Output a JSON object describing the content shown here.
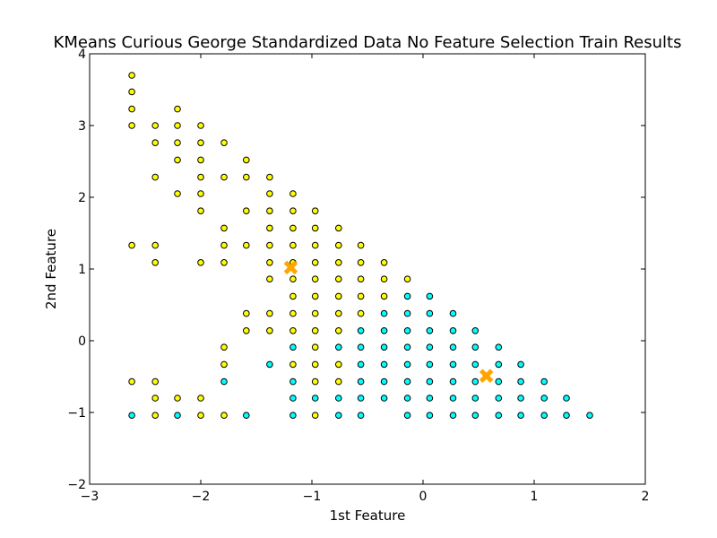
{
  "chart_data": {
    "type": "scatter",
    "title": "KMeans Curious George Standardized Data No Feature Selection Train Results",
    "xlabel": "1st Feature",
    "ylabel": "2nd Feature",
    "xlim": [
      -3,
      2
    ],
    "ylim": [
      -2,
      4
    ],
    "xticks": [
      -3,
      -2,
      -1,
      0,
      1,
      2
    ],
    "yticks": [
      -2,
      -1,
      0,
      1,
      2,
      3,
      4
    ],
    "xtick_labels": [
      "−3",
      "−2",
      "−1",
      "0",
      "1",
      "2"
    ],
    "ytick_labels": [
      "−2",
      "−1",
      "0",
      "1",
      "2",
      "3",
      "4"
    ],
    "grid": false,
    "legend": "none",
    "colors": {
      "cluster_0": "#ffff00",
      "cluster_1": "#00ffff",
      "centroid": "#ffa500",
      "edge": "#000000"
    },
    "series": [
      {
        "cluster": 0,
        "color": "#ffff00",
        "points": [
          [
            -2.62,
            3.7
          ],
          [
            -2.62,
            3.47
          ],
          [
            -2.62,
            3.23
          ],
          [
            -2.62,
            3.0
          ],
          [
            -2.62,
            1.33
          ],
          [
            -2.62,
            -0.57
          ],
          [
            -2.41,
            3.0
          ],
          [
            -2.41,
            2.76
          ],
          [
            -2.41,
            2.28
          ],
          [
            -2.41,
            1.33
          ],
          [
            -2.41,
            1.09
          ],
          [
            -2.41,
            -0.57
          ],
          [
            -2.41,
            -0.8
          ],
          [
            -2.41,
            -1.04
          ],
          [
            -2.21,
            3.23
          ],
          [
            -2.21,
            3.0
          ],
          [
            -2.21,
            2.76
          ],
          [
            -2.21,
            2.52
          ],
          [
            -2.21,
            2.05
          ],
          [
            -2.21,
            -0.8
          ],
          [
            -2.0,
            3.0
          ],
          [
            -2.0,
            2.76
          ],
          [
            -2.0,
            2.52
          ],
          [
            -2.0,
            2.28
          ],
          [
            -2.0,
            2.05
          ],
          [
            -2.0,
            1.81
          ],
          [
            -2.0,
            1.09
          ],
          [
            -2.0,
            -0.8
          ],
          [
            -2.0,
            -1.04
          ],
          [
            -1.79,
            2.76
          ],
          [
            -1.79,
            2.28
          ],
          [
            -1.79,
            1.57
          ],
          [
            -1.79,
            1.33
          ],
          [
            -1.79,
            1.09
          ],
          [
            -1.79,
            -0.09
          ],
          [
            -1.79,
            -0.33
          ],
          [
            -1.79,
            -1.04
          ],
          [
            -1.59,
            2.52
          ],
          [
            -1.59,
            2.28
          ],
          [
            -1.59,
            1.81
          ],
          [
            -1.59,
            1.33
          ],
          [
            -1.59,
            0.38
          ],
          [
            -1.59,
            0.14
          ],
          [
            -1.38,
            2.28
          ],
          [
            -1.38,
            2.05
          ],
          [
            -1.38,
            1.81
          ],
          [
            -1.38,
            1.57
          ],
          [
            -1.38,
            1.33
          ],
          [
            -1.38,
            1.09
          ],
          [
            -1.38,
            0.86
          ],
          [
            -1.38,
            0.38
          ],
          [
            -1.38,
            0.14
          ],
          [
            -1.17,
            2.05
          ],
          [
            -1.17,
            1.81
          ],
          [
            -1.17,
            1.57
          ],
          [
            -1.17,
            1.33
          ],
          [
            -1.17,
            1.09
          ],
          [
            -1.17,
            0.86
          ],
          [
            -1.17,
            0.62
          ],
          [
            -1.17,
            0.38
          ],
          [
            -1.17,
            0.14
          ],
          [
            -1.17,
            -0.33
          ],
          [
            -0.97,
            1.81
          ],
          [
            -0.97,
            1.57
          ],
          [
            -0.97,
            1.33
          ],
          [
            -0.97,
            1.09
          ],
          [
            -0.97,
            0.86
          ],
          [
            -0.97,
            0.62
          ],
          [
            -0.97,
            0.38
          ],
          [
            -0.97,
            0.14
          ],
          [
            -0.97,
            -0.09
          ],
          [
            -0.97,
            -0.33
          ],
          [
            -0.97,
            -0.57
          ],
          [
            -0.97,
            -1.04
          ],
          [
            -0.76,
            1.57
          ],
          [
            -0.76,
            1.33
          ],
          [
            -0.76,
            1.09
          ],
          [
            -0.76,
            0.86
          ],
          [
            -0.76,
            0.62
          ],
          [
            -0.76,
            0.38
          ],
          [
            -0.76,
            0.14
          ],
          [
            -0.76,
            -0.33
          ],
          [
            -0.76,
            -0.57
          ],
          [
            -0.56,
            1.33
          ],
          [
            -0.56,
            1.09
          ],
          [
            -0.56,
            0.86
          ],
          [
            -0.56,
            0.62
          ],
          [
            -0.56,
            0.38
          ],
          [
            -0.35,
            1.09
          ],
          [
            -0.35,
            0.86
          ],
          [
            -0.35,
            0.62
          ],
          [
            -0.14,
            0.86
          ]
        ]
      },
      {
        "cluster": 1,
        "color": "#00ffff",
        "points": [
          [
            -2.62,
            -1.04
          ],
          [
            -2.21,
            -1.04
          ],
          [
            -1.79,
            -0.57
          ],
          [
            -1.59,
            -1.04
          ],
          [
            -1.38,
            -0.33
          ],
          [
            -1.17,
            -0.09
          ],
          [
            -1.17,
            -0.57
          ],
          [
            -1.17,
            -0.8
          ],
          [
            -1.17,
            -1.04
          ],
          [
            -0.97,
            -0.8
          ],
          [
            -0.76,
            -0.09
          ],
          [
            -0.76,
            -0.8
          ],
          [
            -0.76,
            -1.04
          ],
          [
            -0.56,
            0.14
          ],
          [
            -0.56,
            -0.09
          ],
          [
            -0.56,
            -0.33
          ],
          [
            -0.56,
            -0.57
          ],
          [
            -0.56,
            -0.8
          ],
          [
            -0.56,
            -1.04
          ],
          [
            -0.35,
            0.38
          ],
          [
            -0.35,
            0.14
          ],
          [
            -0.35,
            -0.09
          ],
          [
            -0.35,
            -0.33
          ],
          [
            -0.35,
            -0.57
          ],
          [
            -0.35,
            -0.8
          ],
          [
            -0.14,
            0.62
          ],
          [
            -0.14,
            0.38
          ],
          [
            -0.14,
            0.14
          ],
          [
            -0.14,
            -0.09
          ],
          [
            -0.14,
            -0.33
          ],
          [
            -0.14,
            -0.57
          ],
          [
            -0.14,
            -0.8
          ],
          [
            -0.14,
            -1.04
          ],
          [
            0.06,
            0.62
          ],
          [
            0.06,
            0.38
          ],
          [
            0.06,
            0.14
          ],
          [
            0.06,
            -0.09
          ],
          [
            0.06,
            -0.33
          ],
          [
            0.06,
            -0.57
          ],
          [
            0.06,
            -0.8
          ],
          [
            0.06,
            -1.04
          ],
          [
            0.27,
            0.38
          ],
          [
            0.27,
            0.14
          ],
          [
            0.27,
            -0.09
          ],
          [
            0.27,
            -0.33
          ],
          [
            0.27,
            -0.57
          ],
          [
            0.27,
            -0.8
          ],
          [
            0.27,
            -1.04
          ],
          [
            0.47,
            0.14
          ],
          [
            0.47,
            -0.09
          ],
          [
            0.47,
            -0.33
          ],
          [
            0.47,
            -0.57
          ],
          [
            0.47,
            -0.8
          ],
          [
            0.47,
            -1.04
          ],
          [
            0.68,
            -0.09
          ],
          [
            0.68,
            -0.33
          ],
          [
            0.68,
            -0.57
          ],
          [
            0.68,
            -0.8
          ],
          [
            0.68,
            -1.04
          ],
          [
            0.88,
            -0.33
          ],
          [
            0.88,
            -0.57
          ],
          [
            0.88,
            -0.8
          ],
          [
            0.88,
            -1.04
          ],
          [
            1.09,
            -0.57
          ],
          [
            1.09,
            -0.8
          ],
          [
            1.09,
            -1.04
          ],
          [
            1.29,
            -0.8
          ],
          [
            1.29,
            -1.04
          ],
          [
            1.5,
            -1.04
          ]
        ]
      }
    ],
    "centroids": [
      [
        -1.19,
        1.02
      ],
      [
        0.57,
        -0.49
      ]
    ]
  }
}
